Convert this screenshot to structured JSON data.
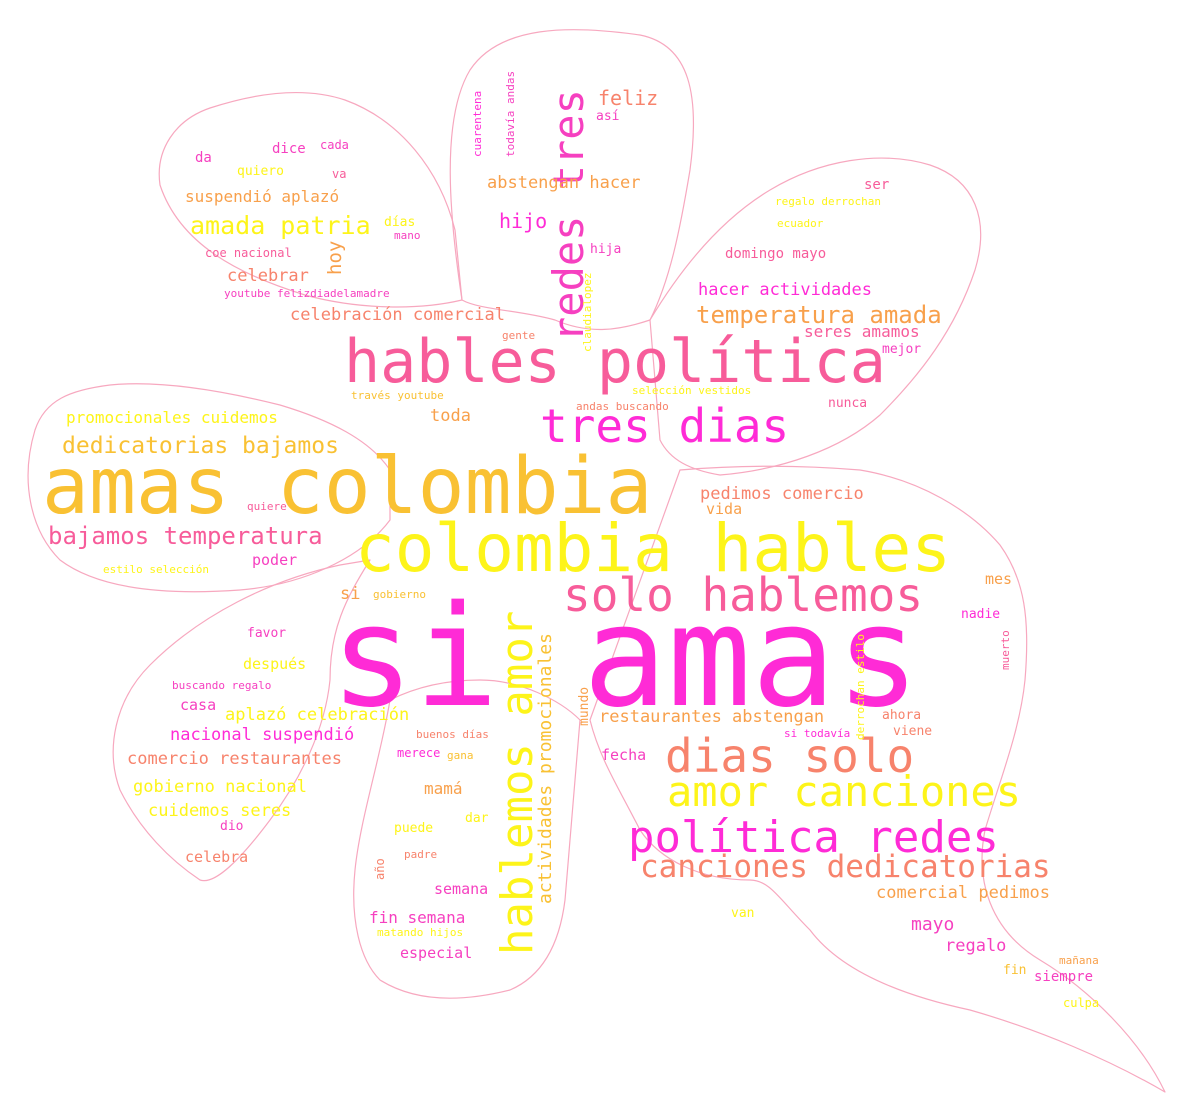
{
  "words": [
    "si amas",
    "amas colombia",
    "colombia hables",
    "hables política",
    "tres dias",
    "solo hablemos",
    "dias solo",
    "amor canciones",
    "política redes",
    "canciones dedicatorias",
    "hablemos amor",
    "redes tres",
    "actividades promocionales",
    "temperatura amada",
    "amada patria",
    "dedicatorias bajamos",
    "bajamos temperatura",
    "restaurantes abstengan",
    "comercial pedimos",
    "pedimos comercio",
    "comercio restaurantes",
    "gobierno nacional",
    "nacional suspendió",
    "suspendió aplazó",
    "aplazó celebración",
    "celebración comercial",
    "cuidemos seres",
    "seres amamos",
    "promocionales cuidemos",
    "hacer actividades",
    "abstengan hacer",
    "feliz",
    "hijo",
    "hoy",
    "celebrar",
    "mayo",
    "regalo",
    "fecha",
    "mamá",
    "casa",
    "fin semana",
    "especial",
    "toda",
    "si",
    "vida",
    "mes",
    "nadie",
    "favor",
    "después",
    "poder",
    "semana",
    "celebra",
    "dio",
    "puede",
    "dar",
    "año",
    "padre",
    "gana",
    "merece",
    "buenos días",
    "mundo",
    "domingo mayo",
    "ser",
    "regalo derrochan",
    "ecuador",
    "mejor",
    "nunca",
    "ahora",
    "viene",
    "si todavía",
    "derrochan estilo",
    "muerto",
    "mañana",
    "fin",
    "siempre",
    "culpa",
    "van",
    "matando hijos",
    "gobierno",
    "estilo selección",
    "quiere",
    "buscando regalo",
    "través youtube",
    "andas buscando",
    "selección vestidos",
    "gente",
    "claudialopez",
    "hija",
    "así",
    "cuarentena",
    "todavía andas",
    "dice",
    "cada",
    "da",
    "quiero",
    "va",
    "días",
    "mano",
    "coe nacional",
    "youtube felizdiadelamadre"
  ]
}
